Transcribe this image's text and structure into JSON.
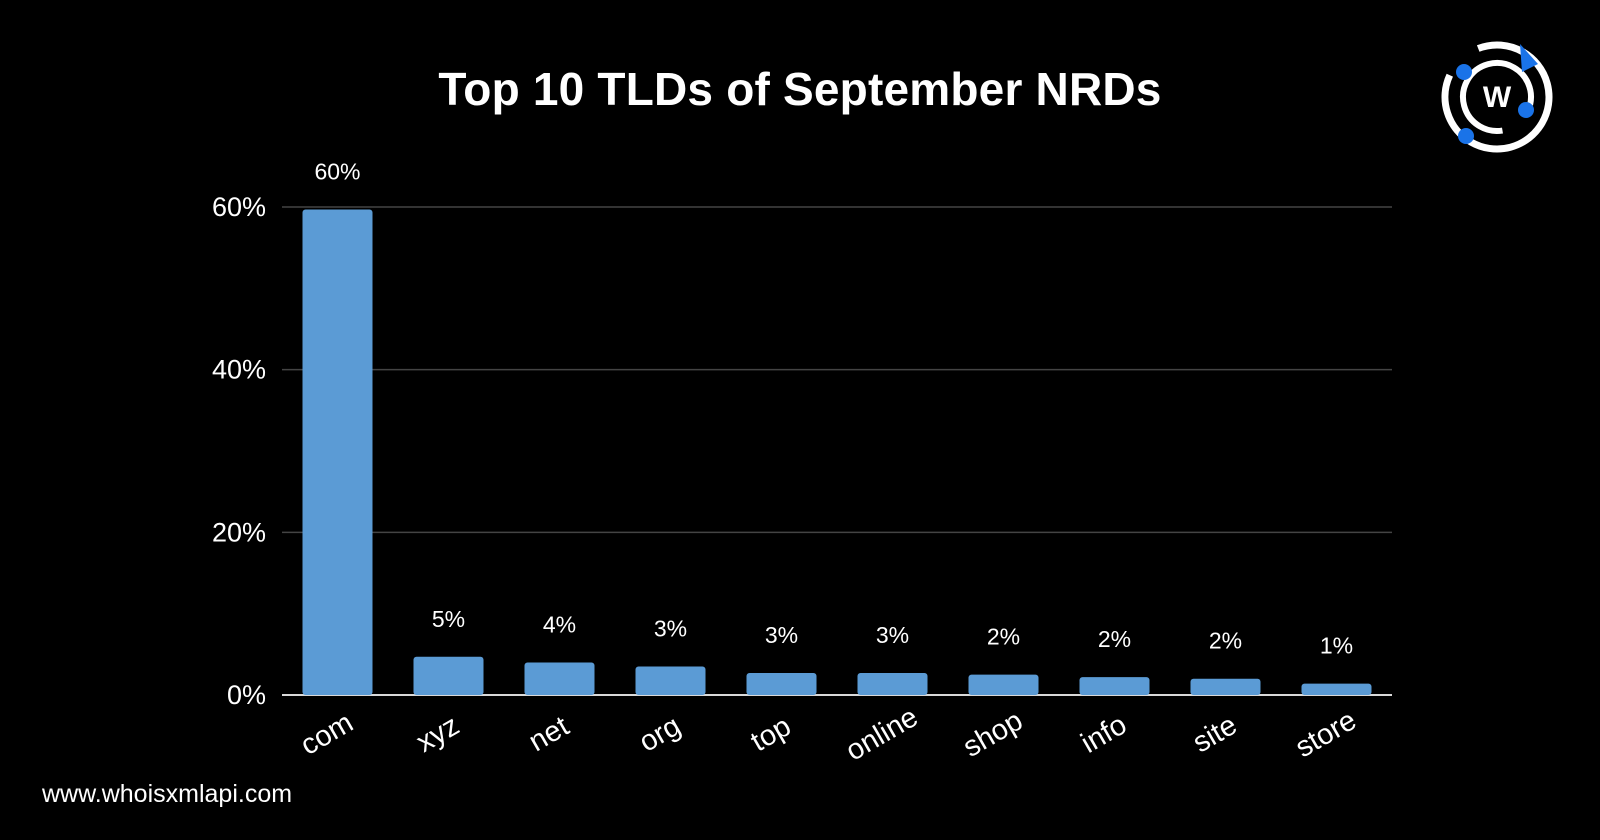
{
  "title": "Top 10 TLDs of September NRDs",
  "footer_url": "www.whoisxmlapi.com",
  "logo_text": "W",
  "colors": {
    "background": "#000000",
    "bar": "#5b9bd5",
    "gridline": "#444444",
    "baseline": "#d9d9d9",
    "text": "#ffffff",
    "logo_accent": "#1a73e8"
  },
  "chart_data": {
    "type": "bar",
    "categories": [
      "com",
      "xyz",
      "net",
      "org",
      "top",
      "online",
      "shop",
      "info",
      "site",
      "store"
    ],
    "values": [
      59.7,
      4.7,
      4.0,
      3.5,
      2.7,
      2.7,
      2.5,
      2.2,
      2.0,
      1.4
    ],
    "data_labels": [
      "60%",
      "5%",
      "4%",
      "3%",
      "3%",
      "3%",
      "2%",
      "2%",
      "2%",
      "1%"
    ],
    "title": "Top 10 TLDs of September NRDs",
    "xlabel": "",
    "ylabel": "",
    "ylim": [
      0,
      60
    ],
    "yticks": [
      0,
      20,
      40,
      60
    ],
    "ytick_labels": [
      "0%",
      "20%",
      "40%",
      "60%"
    ],
    "grid": true,
    "legend": "none"
  }
}
